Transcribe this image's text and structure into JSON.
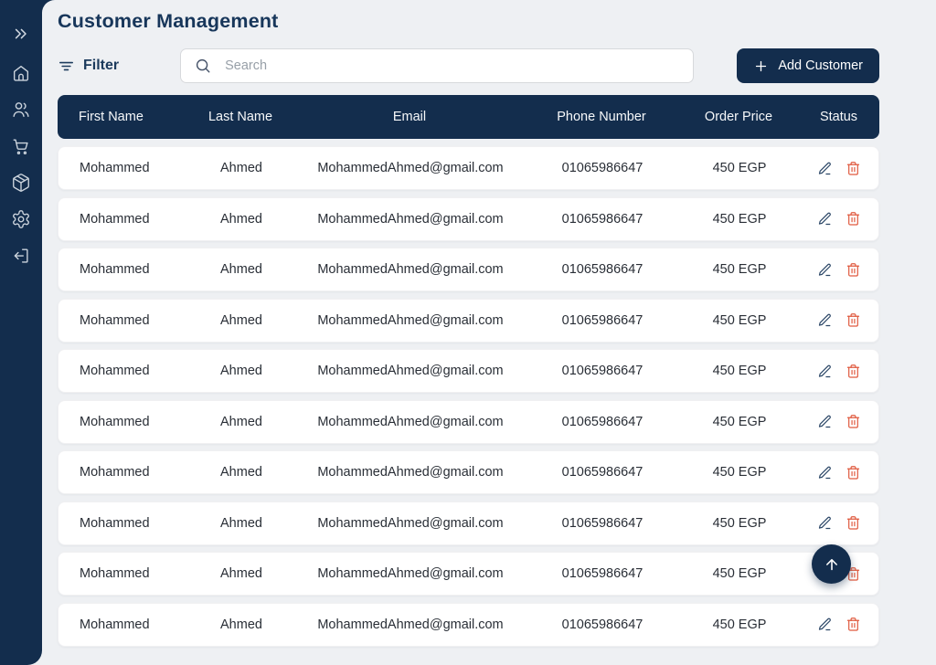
{
  "colors": {
    "navy": "#132d4d",
    "background": "#eef0f3",
    "row_background": "#ffffff",
    "title_text": "#17365a",
    "danger_icon": "#e0593e",
    "edit_icon": "#2c4767"
  },
  "sidebar": {
    "items": [
      {
        "id": "expand",
        "icon": "chevrons-right-icon"
      },
      {
        "id": "home",
        "icon": "home-icon"
      },
      {
        "id": "customers",
        "icon": "users-icon"
      },
      {
        "id": "cart",
        "icon": "shopping-cart-icon"
      },
      {
        "id": "products",
        "icon": "package-icon"
      },
      {
        "id": "settings",
        "icon": "gear-icon"
      },
      {
        "id": "logout",
        "icon": "logout-icon"
      }
    ]
  },
  "header": {
    "title": "Customer Management"
  },
  "toolbar": {
    "filter_label": "Filter",
    "filter_icon": "filter-lines-icon",
    "search_placeholder": "Search",
    "search_icon": "search-icon",
    "add_customer_label": "Add Customer",
    "add_customer_icon": "plus-icon"
  },
  "table": {
    "columns": [
      "First Name",
      "Last Name",
      "Email",
      "Phone Number",
      "Order Price",
      "Status"
    ],
    "row_actions": [
      {
        "id": "edit",
        "icon": "edit-pencil-icon"
      },
      {
        "id": "delete",
        "icon": "trash-icon"
      }
    ],
    "rows": [
      {
        "first_name": "Mohammed",
        "last_name": "Ahmed",
        "email": "MohammedAhmed@gmail.com",
        "phone": "01065986647",
        "order_price": "450 EGP"
      },
      {
        "first_name": "Mohammed",
        "last_name": "Ahmed",
        "email": "MohammedAhmed@gmail.com",
        "phone": "01065986647",
        "order_price": "450 EGP"
      },
      {
        "first_name": "Mohammed",
        "last_name": "Ahmed",
        "email": "MohammedAhmed@gmail.com",
        "phone": "01065986647",
        "order_price": "450 EGP"
      },
      {
        "first_name": "Mohammed",
        "last_name": "Ahmed",
        "email": "MohammedAhmed@gmail.com",
        "phone": "01065986647",
        "order_price": "450 EGP"
      },
      {
        "first_name": "Mohammed",
        "last_name": "Ahmed",
        "email": "MohammedAhmed@gmail.com",
        "phone": "01065986647",
        "order_price": "450 EGP"
      },
      {
        "first_name": "Mohammed",
        "last_name": "Ahmed",
        "email": "MohammedAhmed@gmail.com",
        "phone": "01065986647",
        "order_price": "450 EGP"
      },
      {
        "first_name": "Mohammed",
        "last_name": "Ahmed",
        "email": "MohammedAhmed@gmail.com",
        "phone": "01065986647",
        "order_price": "450 EGP"
      },
      {
        "first_name": "Mohammed",
        "last_name": "Ahmed",
        "email": "MohammedAhmed@gmail.com",
        "phone": "01065986647",
        "order_price": "450 EGP"
      },
      {
        "first_name": "Mohammed",
        "last_name": "Ahmed",
        "email": "MohammedAhmed@gmail.com",
        "phone": "01065986647",
        "order_price": "450 EGP"
      },
      {
        "first_name": "Mohammed",
        "last_name": "Ahmed",
        "email": "MohammedAhmed@gmail.com",
        "phone": "01065986647",
        "order_price": "450 EGP"
      }
    ]
  },
  "floating": {
    "scroll_to_top_icon": "arrow-up-icon"
  }
}
